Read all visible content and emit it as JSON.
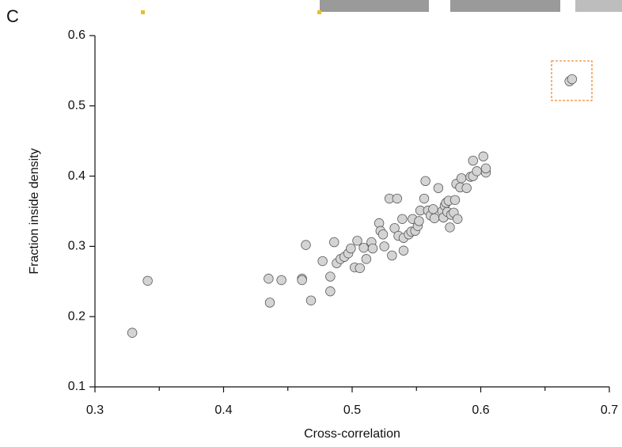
{
  "chart_data": {
    "type": "scatter",
    "panel_label": "C",
    "xlabel": "Cross-correlation",
    "ylabel": "Fraction inside density",
    "xlim": [
      0.3,
      0.7
    ],
    "xticks": [
      0.3,
      0.4,
      0.5,
      0.6,
      0.7
    ],
    "xminorticks": [
      0.35,
      0.45,
      0.55,
      0.65
    ],
    "ylim": [
      0.1,
      0.6
    ],
    "yticks": [
      0.1,
      0.2,
      0.3,
      0.4,
      0.5,
      0.6
    ],
    "color": "#d4d4d4",
    "edgecolor": "#555555",
    "x": [
      0.329,
      0.341,
      0.435,
      0.436,
      0.445,
      0.461,
      0.461,
      0.464,
      0.468,
      0.477,
      0.483,
      0.483,
      0.486,
      0.488,
      0.491,
      0.494,
      0.497,
      0.499,
      0.502,
      0.504,
      0.506,
      0.509,
      0.511,
      0.515,
      0.516,
      0.521,
      0.522,
      0.524,
      0.525,
      0.529,
      0.531,
      0.533,
      0.535,
      0.536,
      0.539,
      0.54,
      0.54,
      0.544,
      0.546,
      0.547,
      0.549,
      0.551,
      0.552,
      0.553,
      0.556,
      0.557,
      0.559,
      0.561,
      0.563,
      0.564,
      0.567,
      0.57,
      0.571,
      0.572,
      0.573,
      0.574,
      0.575,
      0.576,
      0.577,
      0.579,
      0.58,
      0.581,
      0.582,
      0.584,
      0.585,
      0.589,
      0.592,
      0.594,
      0.594,
      0.597,
      0.602,
      0.604,
      0.604,
      0.669,
      0.671
    ],
    "values": [
      0.177,
      0.251,
      0.254,
      0.22,
      0.252,
      0.254,
      0.252,
      0.302,
      0.223,
      0.279,
      0.257,
      0.236,
      0.306,
      0.276,
      0.282,
      0.285,
      0.29,
      0.297,
      0.27,
      0.308,
      0.269,
      0.298,
      0.282,
      0.306,
      0.297,
      0.333,
      0.322,
      0.317,
      0.3,
      0.368,
      0.287,
      0.326,
      0.368,
      0.315,
      0.339,
      0.294,
      0.312,
      0.317,
      0.321,
      0.339,
      0.322,
      0.329,
      0.336,
      0.351,
      0.368,
      0.393,
      0.351,
      0.344,
      0.353,
      0.34,
      0.383,
      0.35,
      0.341,
      0.358,
      0.362,
      0.349,
      0.365,
      0.327,
      0.345,
      0.348,
      0.366,
      0.389,
      0.339,
      0.384,
      0.397,
      0.383,
      0.399,
      0.4,
      0.422,
      0.407,
      0.428,
      0.405,
      0.411,
      0.535,
      0.538
    ]
  }
}
